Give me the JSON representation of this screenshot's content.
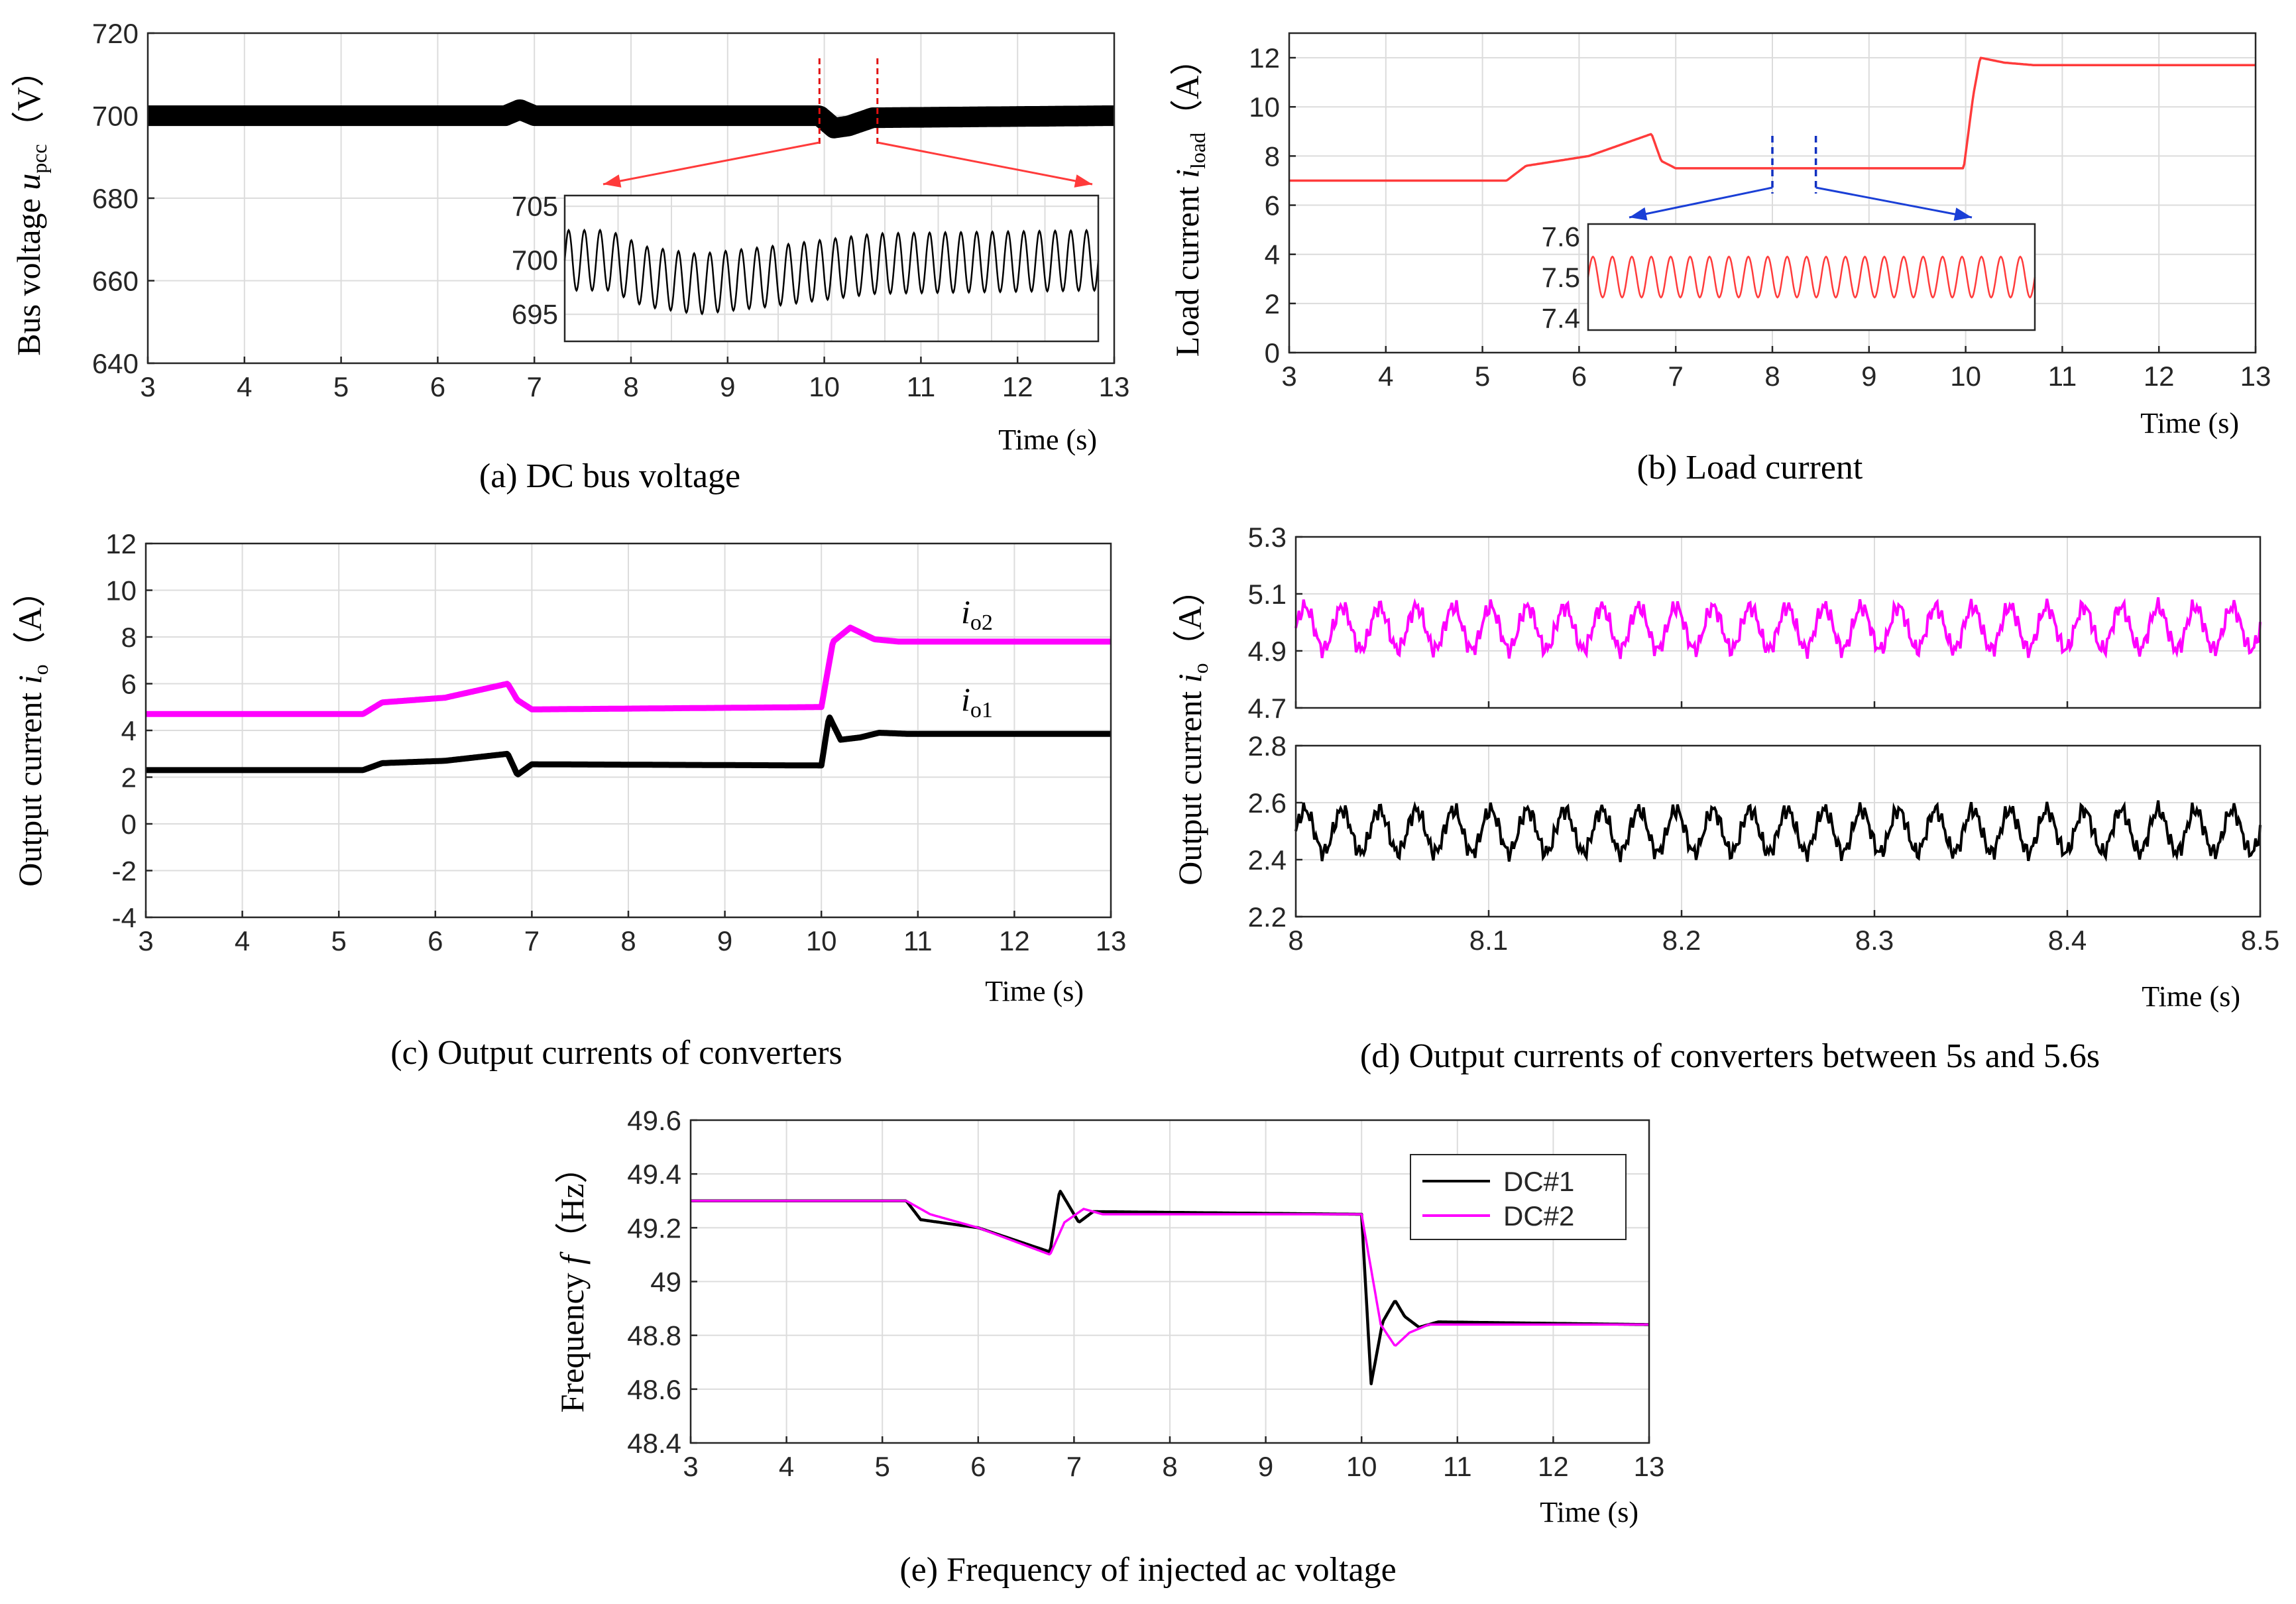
{
  "captions": {
    "a": "(a) DC bus voltage",
    "b": "(b) Load current",
    "c": "(c) Output currents of converters",
    "d": "(d) Output currents of converters between 5s and 5.6s",
    "e": "(e) Frequency of injected ac voltage"
  },
  "colors": {
    "black": "#000000",
    "magenta": "#ff00ff",
    "red": "#ff3b3b",
    "blue": "#1a3fd6",
    "marker_red": "#e01010",
    "marker_blue": "#1030c0"
  },
  "chart_data": [
    {
      "id": "a",
      "type": "line",
      "ylabel_main": "Bus voltage ",
      "ylabel_var": "u",
      "ylabel_sub": "pcc",
      "ylabel_unit": "（V）",
      "xlabel": "Time (s)",
      "xlim": [
        3,
        13
      ],
      "ylim": [
        640,
        720
      ],
      "xticks": [
        "3",
        "4",
        "5",
        "6",
        "7",
        "8",
        "9",
        "10",
        "11",
        "12",
        "13"
      ],
      "yticks": [
        "640",
        "660",
        "680",
        "700",
        "720"
      ],
      "series": [
        {
          "color": "black",
          "x": [
            3,
            6.7,
            6.85,
            7.0,
            9.95,
            10.1,
            10.25,
            10.5,
            13
          ],
          "y": [
            700,
            700,
            701.5,
            700,
            700,
            697,
            697.5,
            699.5,
            700
          ],
          "ripple": 2.5
        }
      ],
      "markers": {
        "color": "marker_red",
        "x": [
          9.95,
          10.55
        ]
      },
      "inset": {
        "yticks": [
          "705",
          "700",
          "695"
        ],
        "ylim": [
          692.5,
          706
        ],
        "xlim": [
          9.95,
          10.55
        ],
        "cycles": 34,
        "envelope_x": [
          9.95,
          10.0,
          10.04,
          10.1,
          10.18,
          10.3,
          10.55
        ],
        "envelope_y": [
          700,
          700,
          698.5,
          697.8,
          698.5,
          699.7,
          700
        ],
        "amplitude": 2.8
      }
    },
    {
      "id": "b",
      "type": "line",
      "ylabel_main": "Load current ",
      "ylabel_var": "i",
      "ylabel_sub": "load",
      "ylabel_unit": "（A）",
      "xlabel": "Time (s)",
      "xlim": [
        3,
        13
      ],
      "ylim": [
        0,
        13
      ],
      "xticks": [
        "3",
        "4",
        "5",
        "6",
        "7",
        "8",
        "9",
        "10",
        "11",
        "12",
        "13"
      ],
      "yticks": [
        "0",
        "2",
        "4",
        "6",
        "8",
        "10",
        "12"
      ],
      "series": [
        {
          "color": "red",
          "x": [
            3,
            5.25,
            5.45,
            6.1,
            6.75,
            6.85,
            7.0,
            9.98,
            10.08,
            10.15,
            10.4,
            10.7,
            13
          ],
          "y": [
            7,
            7,
            7.6,
            8.0,
            8.9,
            7.8,
            7.5,
            7.5,
            10.5,
            12.0,
            11.8,
            11.7,
            11.7
          ]
        }
      ],
      "markers": {
        "color": "marker_blue",
        "x": [
          8.0,
          8.45
        ]
      },
      "inset": {
        "yticks": [
          "7.6",
          "7.5",
          "7.4"
        ],
        "ylim": [
          7.37,
          7.63
        ],
        "xlim": [
          8.0,
          8.45
        ],
        "cycles": 23,
        "center": 7.5,
        "amplitude": 0.05
      }
    },
    {
      "id": "c",
      "type": "line",
      "ylabel_main": "Output current ",
      "ylabel_var": "i",
      "ylabel_sub": "o",
      "ylabel_unit": "（A）",
      "xlabel": "Time (s)",
      "xlim": [
        3,
        13
      ],
      "ylim": [
        -4,
        12
      ],
      "xticks": [
        "3",
        "4",
        "5",
        "6",
        "7",
        "8",
        "9",
        "10",
        "11",
        "12",
        "13"
      ],
      "yticks": [
        "-4",
        "-2",
        "0",
        "2",
        "4",
        "6",
        "8",
        "10",
        "12"
      ],
      "series": [
        {
          "name_var": "i",
          "name_sub": "o2",
          "color": "magenta",
          "x": [
            3,
            5.25,
            5.45,
            6.1,
            6.75,
            6.85,
            7.0,
            10.0,
            10.12,
            10.3,
            10.55,
            10.8,
            13
          ],
          "y": [
            4.7,
            4.7,
            5.2,
            5.4,
            6.0,
            5.3,
            4.9,
            5.0,
            7.8,
            8.4,
            7.9,
            7.8,
            7.8
          ]
        },
        {
          "name_var": "i",
          "name_sub": "o1",
          "color": "black",
          "x": [
            3,
            5.25,
            5.45,
            6.1,
            6.75,
            6.85,
            7.0,
            10.0,
            10.08,
            10.2,
            10.4,
            10.6,
            10.9,
            13
          ],
          "y": [
            2.3,
            2.3,
            2.6,
            2.7,
            3.0,
            2.1,
            2.55,
            2.5,
            4.6,
            3.6,
            3.7,
            3.9,
            3.85,
            3.85
          ]
        }
      ]
    },
    {
      "id": "d",
      "type": "line",
      "ylabel_main": "Output current ",
      "ylabel_var": "i",
      "ylabel_sub": "o",
      "ylabel_unit": "（A）",
      "xlabel": "Time (s)",
      "xlim": [
        8,
        8.5
      ],
      "xticks": [
        "8",
        "8.1",
        "8.2",
        "8.3",
        "8.4",
        "8.5"
      ],
      "top": {
        "ylim": [
          4.7,
          5.3
        ],
        "yticks": [
          "4.7",
          "4.9",
          "5.1",
          "5.3"
        ],
        "color": "magenta",
        "center": 4.98,
        "amplitude": 0.075,
        "cycles": 26
      },
      "bottom": {
        "ylim": [
          2.2,
          2.8
        ],
        "yticks": [
          "2.2",
          "2.4",
          "2.6",
          "2.8"
        ],
        "color": "black",
        "center": 2.5,
        "amplitude": 0.075,
        "cycles": 26
      }
    },
    {
      "id": "e",
      "type": "line",
      "ylabel_main": "Frequency ",
      "ylabel_var": "f",
      "ylabel_unit": "（Hz）",
      "xlabel": "Time (s)",
      "xlim": [
        3,
        13
      ],
      "ylim": [
        48.4,
        49.6
      ],
      "xticks": [
        "3",
        "4",
        "5",
        "6",
        "7",
        "8",
        "9",
        "10",
        "11",
        "12",
        "13"
      ],
      "yticks": [
        "48.4",
        "48.6",
        "48.8",
        "49",
        "49.2",
        "49.4",
        "49.6"
      ],
      "legend": {
        "position": "top-right",
        "entries": [
          "DC#1",
          "DC#2"
        ]
      },
      "series": [
        {
          "name": "DC#1",
          "color": "black",
          "x": [
            3,
            5.25,
            5.4,
            6.0,
            6.75,
            6.85,
            6.95,
            7.05,
            7.2,
            10.0,
            10.1,
            10.22,
            10.35,
            10.45,
            10.6,
            10.8,
            13
          ],
          "y": [
            49.3,
            49.3,
            49.23,
            49.2,
            49.11,
            49.34,
            49.28,
            49.22,
            49.26,
            49.25,
            48.62,
            48.85,
            48.93,
            48.87,
            48.83,
            48.85,
            48.84
          ]
        },
        {
          "name": "DC#2",
          "color": "magenta",
          "x": [
            3,
            5.25,
            5.5,
            6.0,
            6.75,
            6.9,
            7.1,
            7.3,
            10.0,
            10.2,
            10.35,
            10.5,
            10.7,
            13
          ],
          "y": [
            49.3,
            49.3,
            49.25,
            49.2,
            49.1,
            49.22,
            49.27,
            49.25,
            49.25,
            48.84,
            48.76,
            48.81,
            48.84,
            48.84
          ]
        }
      ]
    }
  ]
}
